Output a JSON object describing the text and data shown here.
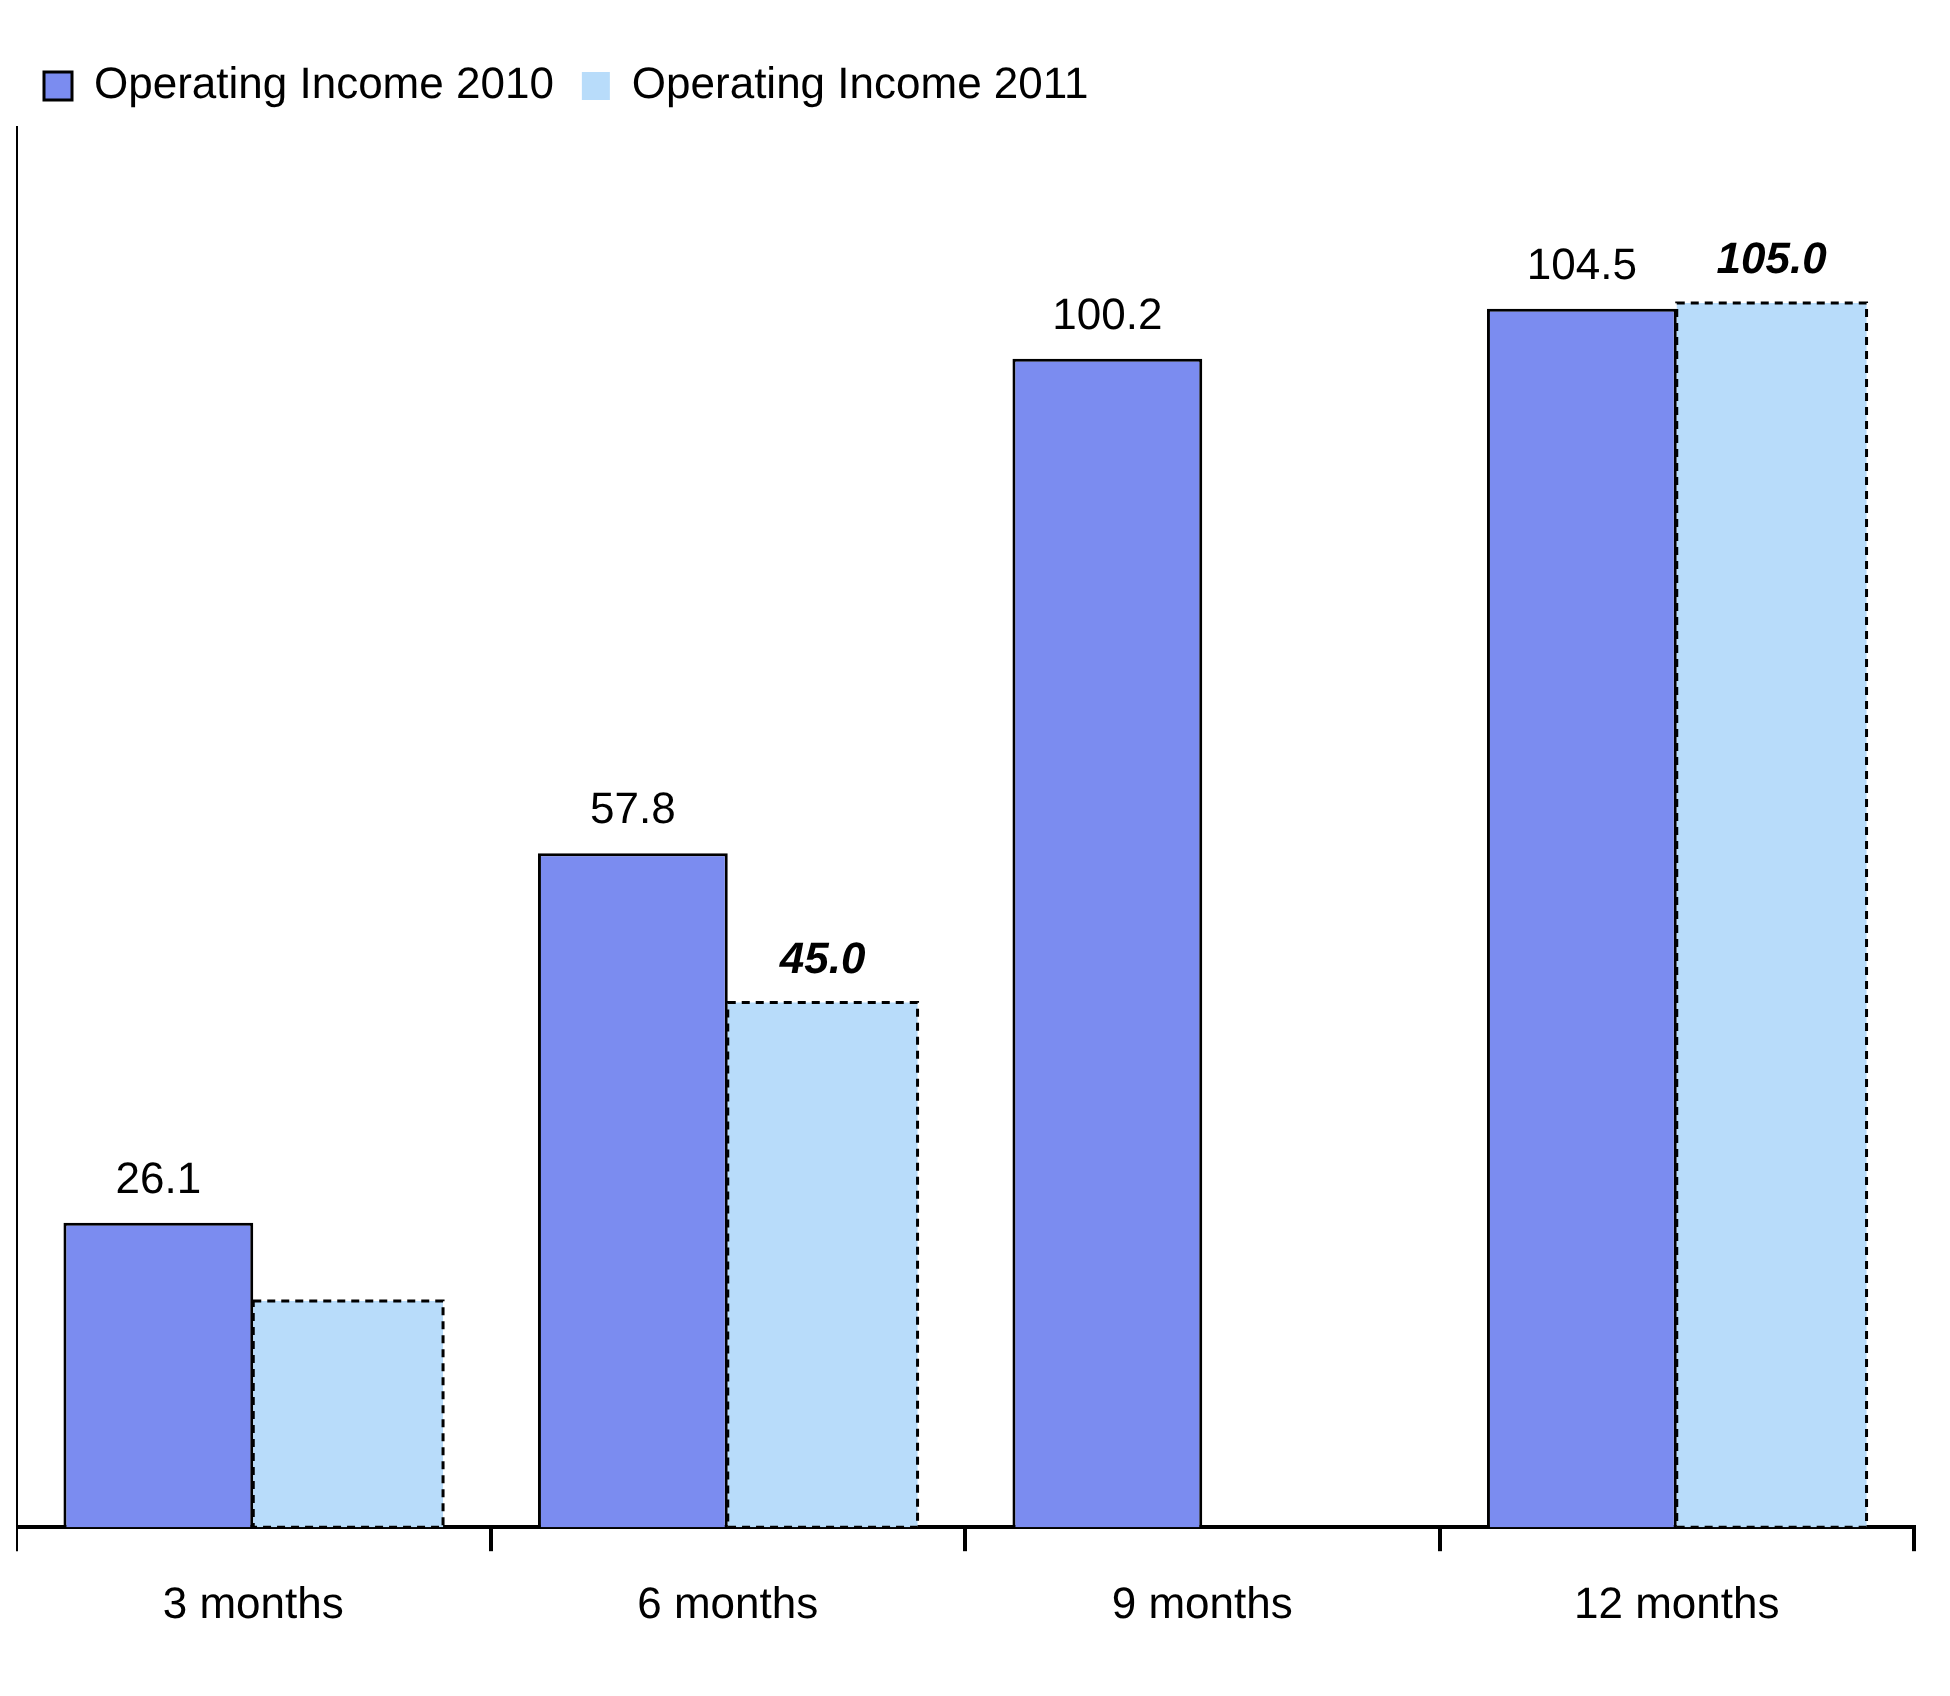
{
  "chart_data": {
    "type": "bar",
    "categories": [
      "3 months",
      "6 months",
      "9 months",
      "12 months"
    ],
    "series": [
      {
        "name": "Operating Income 2010",
        "color": "#7b8cf0",
        "values": [
          26.1,
          57.8,
          100.2,
          104.5
        ],
        "value_labels": [
          "26.1",
          "57.8",
          "100.2",
          "104.5"
        ]
      },
      {
        "name": "Operating Income 2011",
        "color": "#b8dcfa",
        "values": [
          19.4,
          45.0,
          null,
          105.0
        ],
        "value_labels": [
          null,
          "45.0",
          null,
          "105.0"
        ],
        "line_style": "dashed"
      }
    ],
    "legend": "top left",
    "tick_labels": "x",
    "grid": false
  }
}
